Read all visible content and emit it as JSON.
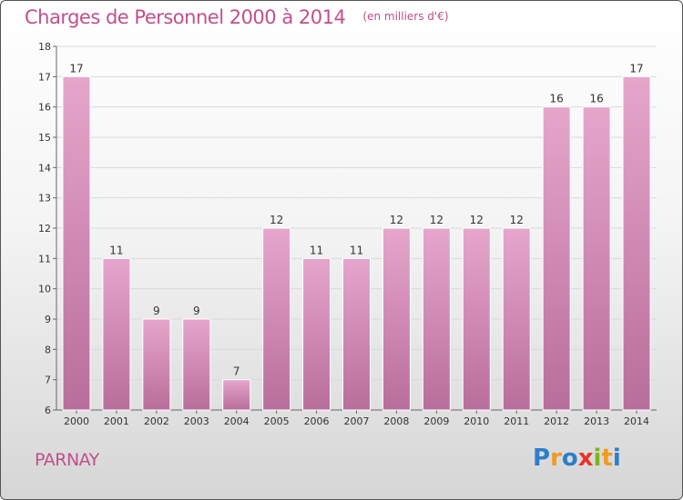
{
  "title": "Charges de Personnel 2000 à 2014",
  "unit_note": "(en milliers d'€)",
  "place": "PARNAY",
  "logo": {
    "text": "Proxiti",
    "letters": [
      {
        "ch": "P",
        "color": "#2a7fc9"
      },
      {
        "ch": "r",
        "color": "#f29a1f"
      },
      {
        "ch": "o",
        "color": "#2a7fc9"
      },
      {
        "ch": "x",
        "color": "#e8342a"
      },
      {
        "ch": "i",
        "color": "#7ab51d"
      },
      {
        "ch": "t",
        "color": "#f29a1f"
      },
      {
        "ch": "i",
        "color": "#2a7fc9"
      }
    ]
  },
  "colors": {
    "accent": "#c0508c",
    "bar_top": "#e6a6cc",
    "bar_bottom": "#b86e9a"
  },
  "chart_data": {
    "type": "bar",
    "title": "Charges de Personnel 2000 à 2014",
    "subtitle": "(en milliers d'€)",
    "categories": [
      "2000",
      "2001",
      "2002",
      "2003",
      "2004",
      "2005",
      "2006",
      "2007",
      "2008",
      "2009",
      "2010",
      "2011",
      "2012",
      "2013",
      "2014"
    ],
    "values": [
      17,
      11,
      9,
      9,
      7,
      12,
      11,
      11,
      12,
      12,
      12,
      12,
      16,
      16,
      17
    ],
    "ylim": [
      6,
      18
    ],
    "yticks": [
      6,
      7,
      8,
      9,
      10,
      11,
      12,
      13,
      14,
      15,
      16,
      17,
      18
    ],
    "grid": true,
    "data_labels": true
  }
}
